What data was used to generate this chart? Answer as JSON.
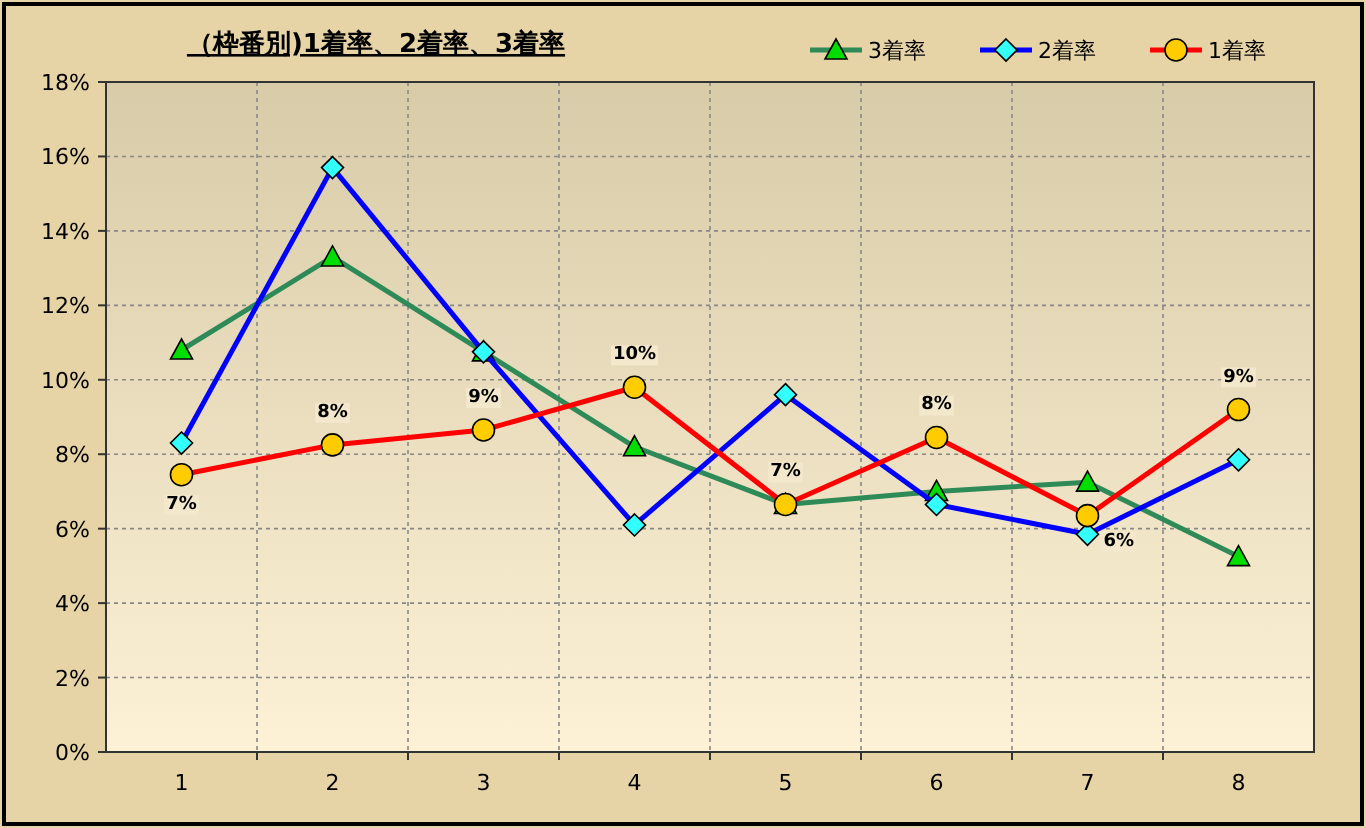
{
  "chart_data": {
    "type": "line",
    "title": "（枠番別)1着率、2着率、3着率",
    "categories": [
      "1",
      "2",
      "3",
      "4",
      "5",
      "6",
      "7",
      "8"
    ],
    "series": [
      {
        "name": "3着率",
        "color": "#2e8b57",
        "marker": "triangle",
        "values": [
          10.8,
          13.3,
          10.75,
          8.2,
          6.65,
          7.0,
          7.25,
          5.25
        ]
      },
      {
        "name": "2着率",
        "color": "#0000ff",
        "marker": "diamond",
        "values": [
          8.3,
          15.7,
          10.75,
          6.1,
          9.6,
          6.65,
          5.85,
          7.85
        ]
      },
      {
        "name": "1着率",
        "color": "#ff0000",
        "marker": "circle",
        "values": [
          7.45,
          8.25,
          8.65,
          9.8,
          6.65,
          8.45,
          6.35,
          9.2
        ],
        "value_labels": [
          "7%",
          "8%",
          "9%",
          "10%",
          "7%",
          "8%",
          "6%",
          "9%"
        ]
      }
    ],
    "ylim": [
      0,
      18
    ],
    "yticks": [
      {
        "value": 0,
        "label": "0%"
      },
      {
        "value": 2,
        "label": "2%"
      },
      {
        "value": 4,
        "label": "4%"
      },
      {
        "value": 6,
        "label": "6%"
      },
      {
        "value": 8,
        "label": "8%"
      },
      {
        "value": 10,
        "label": "10%"
      },
      {
        "value": 12,
        "label": "12%"
      },
      {
        "value": 14,
        "label": "14%"
      },
      {
        "value": 16,
        "label": "16%"
      },
      {
        "value": 18,
        "label": "18%"
      }
    ],
    "grid": true,
    "legend": "top right"
  }
}
